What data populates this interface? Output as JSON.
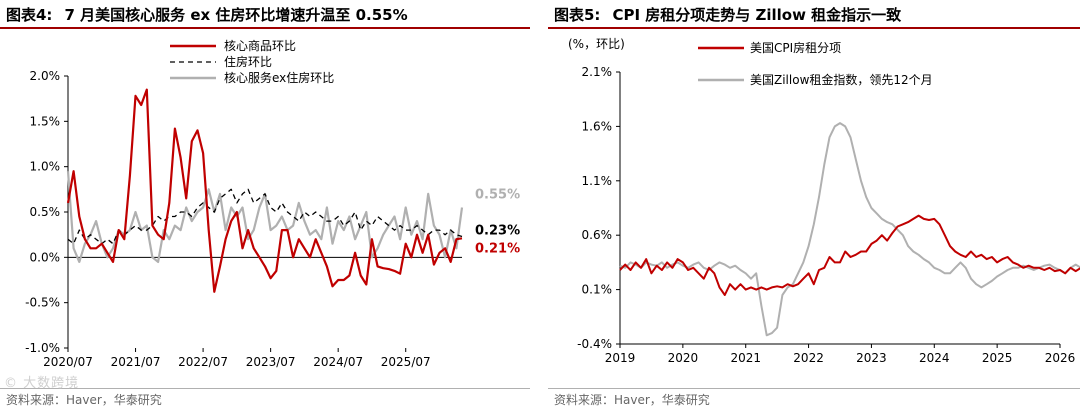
{
  "left": {
    "title_prefix": "图表4:",
    "title": "7 月美国核心服务 ex 住房环比增速升温至 0.55%",
    "source": "资料来源：Haver，华泰研究",
    "watermark": "© 大数跨境"
  },
  "right": {
    "title_prefix": "图表5:",
    "title": "CPI 房租分项走势与 Zillow 租金指示一致",
    "source": "资料来源：Haver，华泰研究"
  },
  "chart_data": [
    {
      "type": "line",
      "x_start": "2020/07",
      "x_end": "2025/07",
      "tick_labels_x": [
        "2020/07",
        "2021/07",
        "2022/07",
        "2023/07",
        "2024/07",
        "2025/07"
      ],
      "ylim": [
        -1.0,
        2.0
      ],
      "y_ticks": [
        -1.0,
        -0.5,
        0.0,
        0.5,
        1.0,
        1.5,
        2.0
      ],
      "y_tick_labels": [
        "-1.0%",
        "-0.5%",
        "0.0%",
        "0.5%",
        "1.0%",
        "1.5%",
        "2.0%"
      ],
      "legend": "top-center",
      "grid": false,
      "series": [
        {
          "name": "核心商品环比",
          "color": "#c00000",
          "dash": "solid",
          "end_label": "0.21%",
          "values": [
            0.6,
            0.95,
            0.45,
            0.2,
            0.1,
            0.1,
            0.15,
            0.05,
            -0.05,
            0.3,
            0.2,
            0.9,
            1.78,
            1.68,
            1.85,
            0.35,
            0.25,
            0.2,
            0.6,
            1.42,
            1.1,
            0.65,
            1.28,
            1.4,
            1.15,
            0.3,
            -0.38,
            -0.1,
            0.2,
            0.4,
            0.5,
            0.1,
            0.3,
            0.1,
            0.0,
            -0.1,
            -0.23,
            -0.15,
            0.3,
            0.3,
            0.0,
            0.2,
            0.1,
            0.0,
            0.2,
            0.05,
            -0.1,
            -0.32,
            -0.25,
            -0.25,
            -0.2,
            0.05,
            -0.2,
            -0.3,
            0.2,
            -0.1,
            -0.12,
            -0.13,
            -0.15,
            -0.18,
            0.15,
            0.0,
            0.25,
            0.05,
            0.25,
            -0.08,
            0.05,
            0.1,
            -0.05,
            0.2,
            0.21
          ]
        },
        {
          "name": "住房环比",
          "color": "#000000",
          "dash": "dashed",
          "end_label": "0.23%",
          "values": [
            0.2,
            0.15,
            0.3,
            0.2,
            0.25,
            0.2,
            0.15,
            0.2,
            0.15,
            0.3,
            0.25,
            0.3,
            0.35,
            0.3,
            0.3,
            0.35,
            0.45,
            0.4,
            0.45,
            0.45,
            0.5,
            0.5,
            0.45,
            0.55,
            0.6,
            0.55,
            0.5,
            0.65,
            0.7,
            0.75,
            0.6,
            0.7,
            0.75,
            0.6,
            0.65,
            0.7,
            0.55,
            0.5,
            0.6,
            0.5,
            0.45,
            0.4,
            0.5,
            0.45,
            0.5,
            0.45,
            0.4,
            0.4,
            0.45,
            0.35,
            0.4,
            0.5,
            0.3,
            0.4,
            0.35,
            0.45,
            0.4,
            0.35,
            0.3,
            0.35,
            0.3,
            0.3,
            0.35,
            0.3,
            0.25,
            0.3,
            0.3,
            0.25,
            0.3,
            0.25,
            0.23
          ]
        },
        {
          "name": "核心服务ex住房环比",
          "color": "#b0b0b0",
          "dash": "solid",
          "end_label": "0.55%",
          "values": [
            0.95,
            0.1,
            -0.05,
            0.15,
            0.25,
            0.4,
            0.15,
            0.0,
            0.1,
            0.3,
            0.25,
            0.3,
            0.5,
            0.3,
            0.35,
            0.0,
            -0.05,
            0.3,
            0.2,
            0.35,
            0.3,
            0.55,
            0.4,
            0.5,
            0.55,
            0.75,
            0.5,
            0.7,
            0.3,
            0.55,
            0.45,
            0.55,
            0.2,
            0.3,
            0.55,
            0.7,
            0.3,
            0.35,
            0.45,
            0.3,
            0.35,
            0.6,
            0.4,
            0.25,
            0.3,
            0.2,
            0.55,
            0.15,
            0.4,
            0.3,
            0.45,
            0.2,
            0.35,
            0.5,
            0.0,
            0.1,
            0.25,
            0.35,
            0.45,
            0.2,
            0.55,
            0.25,
            0.4,
            0.2,
            0.7,
            0.35,
            0.25,
            0.0,
            0.3,
            0.1,
            0.55
          ]
        }
      ]
    },
    {
      "type": "line",
      "x_start": "2019-01",
      "x_end": "2026-01",
      "unit_label": "(%，环比)",
      "tick_labels_x": [
        "2019",
        "2020",
        "2021",
        "2022",
        "2023",
        "2024",
        "2025",
        "2026"
      ],
      "ylim": [
        -0.4,
        2.1
      ],
      "y_ticks": [
        -0.4,
        0.1,
        0.6,
        1.1,
        1.6,
        2.1
      ],
      "y_tick_labels": [
        "-0.4%",
        "0.1%",
        "0.6%",
        "1.1%",
        "1.6%",
        "2.1%"
      ],
      "legend": "top-center",
      "grid": false,
      "series": [
        {
          "name": "美国CPI房租分项",
          "color": "#c00000",
          "dash": "solid",
          "values": [
            0.28,
            0.33,
            0.28,
            0.35,
            0.3,
            0.38,
            0.25,
            0.32,
            0.28,
            0.35,
            0.3,
            0.38,
            0.35,
            0.28,
            0.3,
            0.25,
            0.2,
            0.3,
            0.25,
            0.12,
            0.05,
            0.15,
            0.1,
            0.15,
            0.1,
            0.12,
            0.1,
            0.12,
            0.1,
            0.12,
            0.13,
            0.12,
            0.15,
            0.13,
            0.15,
            0.2,
            0.25,
            0.15,
            0.28,
            0.3,
            0.4,
            0.35,
            0.35,
            0.45,
            0.4,
            0.42,
            0.45,
            0.45,
            0.52,
            0.55,
            0.6,
            0.55,
            0.62,
            0.68,
            0.7,
            0.72,
            0.75,
            0.78,
            0.75,
            0.74,
            0.75,
            0.7,
            0.6,
            0.5,
            0.45,
            0.42,
            0.4,
            0.45,
            0.4,
            0.42,
            0.38,
            0.4,
            0.35,
            0.38,
            0.4,
            0.35,
            0.33,
            0.3,
            0.32,
            0.3,
            0.3,
            0.28,
            0.3,
            0.27,
            0.28,
            0.25,
            0.3,
            0.27,
            0.3,
            0.28,
            0.22,
            0.25,
            0.23,
            0.22,
            0.18,
            0.2,
            0.22
          ]
        },
        {
          "name": "美国Zillow租金指数，领先12个月",
          "color": "#b0b0b0",
          "dash": "solid",
          "values": [
            0.32,
            0.3,
            0.35,
            0.33,
            0.3,
            0.35,
            0.33,
            0.32,
            0.35,
            0.3,
            0.33,
            0.35,
            0.32,
            0.3,
            0.33,
            0.35,
            0.3,
            0.28,
            0.32,
            0.35,
            0.33,
            0.3,
            0.32,
            0.28,
            0.25,
            0.2,
            0.25,
            -0.05,
            -0.32,
            -0.3,
            -0.25,
            0.05,
            0.12,
            0.15,
            0.25,
            0.35,
            0.5,
            0.7,
            0.95,
            1.25,
            1.5,
            1.6,
            1.63,
            1.6,
            1.5,
            1.3,
            1.1,
            0.95,
            0.85,
            0.8,
            0.75,
            0.72,
            0.7,
            0.65,
            0.6,
            0.5,
            0.45,
            0.42,
            0.38,
            0.35,
            0.3,
            0.28,
            0.25,
            0.25,
            0.3,
            0.35,
            0.3,
            0.2,
            0.15,
            0.12,
            0.15,
            0.18,
            0.22,
            0.25,
            0.28,
            0.3,
            0.3,
            0.32,
            0.3,
            0.28,
            0.3,
            0.32,
            0.33,
            0.3,
            0.28,
            0.25,
            0.3,
            0.33,
            0.3,
            0.25
          ]
        }
      ]
    }
  ]
}
